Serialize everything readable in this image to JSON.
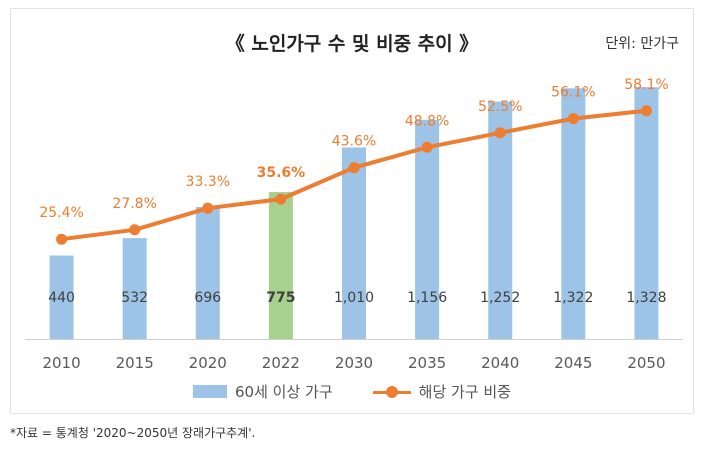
{
  "chart_data": {
    "type": "bar",
    "title": "《 노인가구 수 및 비중 추이 》",
    "unit": "단위: 만가구",
    "categories": [
      "2010",
      "2015",
      "2020",
      "2022",
      "2030",
      "2035",
      "2040",
      "2045",
      "2050"
    ],
    "series": [
      {
        "name": "60세 이상 가구",
        "type": "bar",
        "values": [
          440,
          532,
          696,
          775,
          1010,
          1156,
          1252,
          1322,
          1328
        ],
        "labels": [
          "440",
          "532",
          "696",
          "775",
          "1,010",
          "1,156",
          "1,252",
          "1,322",
          "1,328"
        ],
        "color": "#9dc3e6",
        "highlight_index": 3,
        "highlight_color": "#a9d18e"
      },
      {
        "name": "해당 가구 비중",
        "type": "line",
        "values": [
          25.4,
          27.8,
          33.3,
          35.6,
          43.6,
          48.8,
          52.5,
          56.1,
          58.1
        ],
        "labels": [
          "25.4%",
          "27.8%",
          "33.3%",
          "35.6%",
          "43.6%",
          "48.8%",
          "52.5%",
          "56.1%",
          "58.1%"
        ],
        "color": "#ed7d31",
        "highlight_index": 3
      }
    ],
    "ylim_bars": [
      0,
      1450
    ],
    "ylim_line": [
      0,
      70
    ],
    "grid": false,
    "legend": "bottom"
  },
  "source_note": "*자료 = 통계청 '2020~2050년 장래가구추계'."
}
